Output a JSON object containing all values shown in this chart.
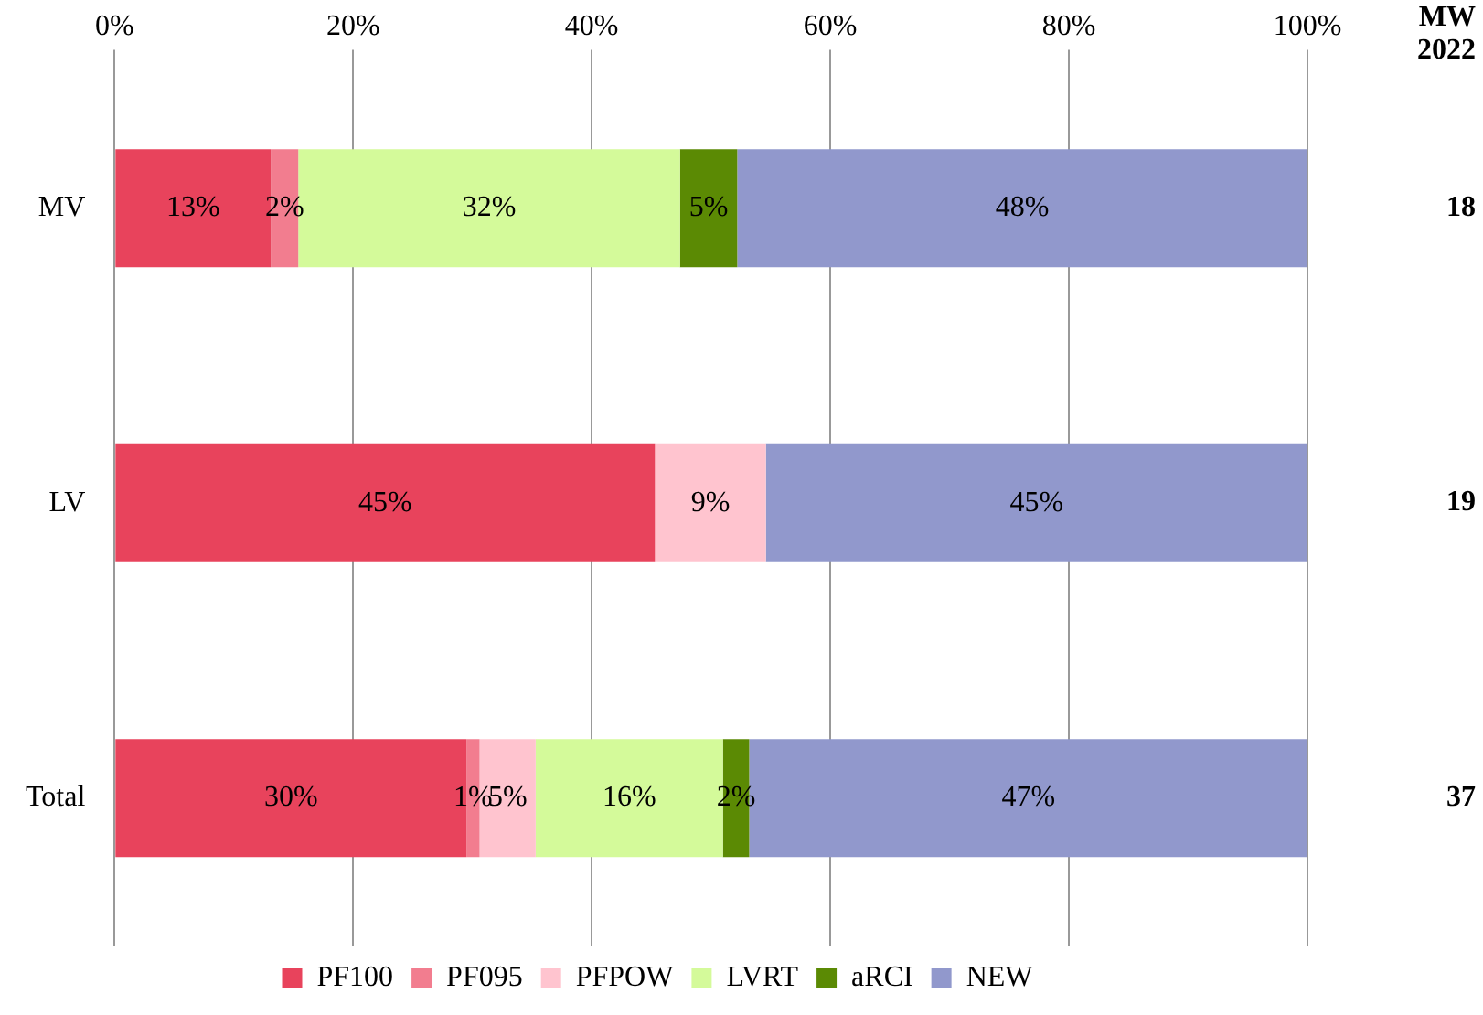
{
  "chart_data": {
    "type": "bar",
    "orientation": "horizontal",
    "stacked": true,
    "categories": [
      "MV",
      "LV",
      "Total"
    ],
    "series": [
      {
        "name": "PF100",
        "color": "#e8435c",
        "values": [
          13.1,
          45.3,
          29.5
        ],
        "value_labels": [
          "13%",
          "45%",
          "30%"
        ]
      },
      {
        "name": "PF095",
        "color": "#f27d8f",
        "values": [
          2.3,
          null,
          1.1
        ],
        "value_labels": [
          "2%",
          null,
          "1%"
        ]
      },
      {
        "name": "PFPOW",
        "color": "#ffc4cf",
        "values": [
          null,
          9.3,
          4.7
        ],
        "value_labels": [
          null,
          "9%",
          "5%"
        ]
      },
      {
        "name": "LVRT",
        "color": "#d4fa9a",
        "values": [
          32.0,
          null,
          15.7
        ],
        "value_labels": [
          "32%",
          null,
          "16%"
        ]
      },
      {
        "name": "aRCI",
        "color": "#5b8a04",
        "values": [
          4.8,
          null,
          2.2
        ],
        "value_labels": [
          "5%",
          null,
          "2%"
        ]
      },
      {
        "name": "NEW",
        "color": "#9198cc",
        "values": [
          47.8,
          45.4,
          46.8
        ],
        "value_labels": [
          "48%",
          "45%",
          "47%"
        ]
      }
    ],
    "xlim": [
      0,
      100
    ],
    "xticks": [
      {
        "value": 0,
        "label": "0%"
      },
      {
        "value": 20,
        "label": "20%"
      },
      {
        "value": 40,
        "label": "40%"
      },
      {
        "value": 60,
        "label": "60%"
      },
      {
        "value": 80,
        "label": "80%"
      },
      {
        "value": 100,
        "label": "100%"
      }
    ],
    "grid": "x",
    "legend": "bottom",
    "annotations": [
      "MW 2022",
      "18",
      "19",
      "37"
    ]
  }
}
